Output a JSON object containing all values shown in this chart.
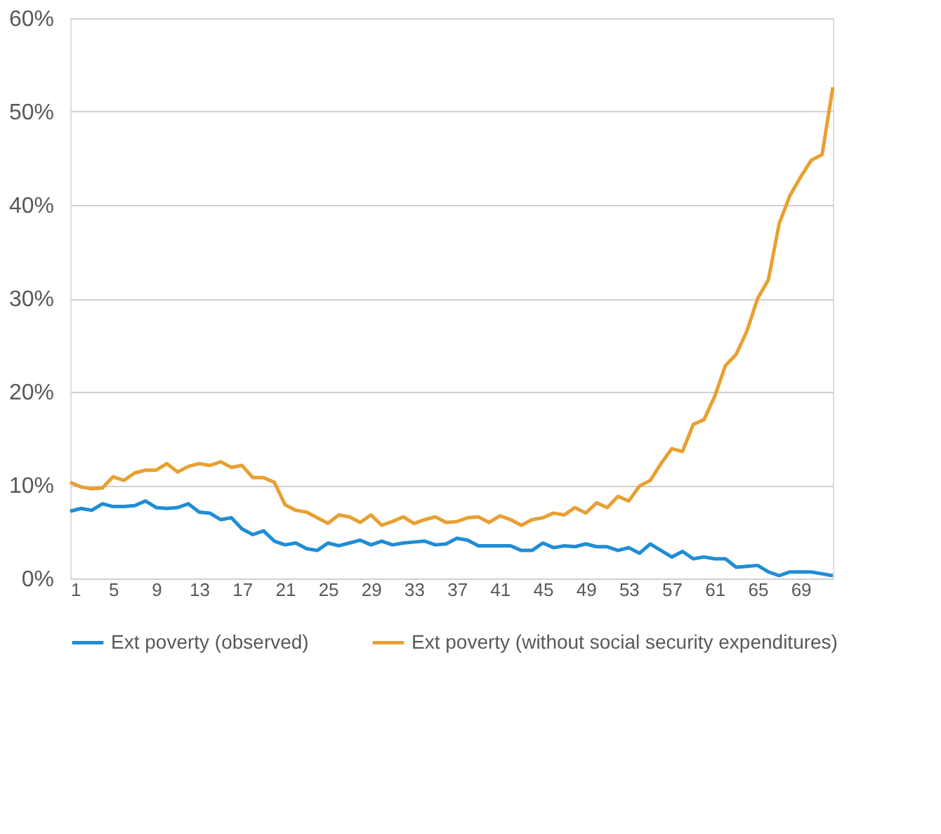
{
  "chart_data": {
    "type": "line",
    "x": [
      1,
      2,
      3,
      4,
      5,
      6,
      7,
      8,
      9,
      10,
      11,
      12,
      13,
      14,
      15,
      16,
      17,
      18,
      19,
      20,
      21,
      22,
      23,
      24,
      25,
      26,
      27,
      28,
      29,
      30,
      31,
      32,
      33,
      34,
      35,
      36,
      37,
      38,
      39,
      40,
      41,
      42,
      43,
      44,
      45,
      46,
      47,
      48,
      49,
      50,
      51,
      52,
      53,
      54,
      55,
      56,
      57,
      58,
      59,
      60,
      61,
      62,
      63,
      64,
      65,
      66,
      67,
      68,
      69,
      70,
      71,
      72
    ],
    "series": [
      {
        "name": "Ext poverty (observed)",
        "color": "#1f8dd6",
        "values": [
          7.2,
          7.5,
          7.3,
          8.0,
          7.7,
          7.7,
          7.8,
          8.3,
          7.6,
          7.5,
          7.6,
          8.0,
          7.1,
          7.0,
          6.3,
          6.5,
          5.3,
          4.7,
          5.1,
          4.0,
          3.6,
          3.8,
          3.2,
          3.0,
          3.8,
          3.5,
          3.8,
          4.1,
          3.6,
          4.0,
          3.6,
          3.8,
          3.9,
          4.0,
          3.6,
          3.7,
          4.3,
          4.1,
          3.5,
          3.5,
          3.5,
          3.5,
          3.0,
          3.0,
          3.8,
          3.3,
          3.5,
          3.4,
          3.7,
          3.4,
          3.4,
          3.0,
          3.3,
          2.7,
          3.7,
          3.0,
          2.3,
          2.9,
          2.1,
          2.3,
          2.1,
          2.1,
          1.2,
          1.3,
          1.4,
          0.7,
          0.3,
          0.7,
          0.7,
          0.7,
          0.5,
          0.3
        ]
      },
      {
        "name": "Ext poverty (without social security expenditures)",
        "color": "#e8a032",
        "values": [
          10.3,
          9.8,
          9.6,
          9.7,
          10.9,
          10.5,
          11.3,
          11.6,
          11.6,
          12.3,
          11.4,
          12.0,
          12.3,
          12.1,
          12.5,
          11.9,
          12.1,
          10.8,
          10.8,
          10.3,
          7.9,
          7.3,
          7.1,
          6.5,
          5.9,
          6.8,
          6.6,
          6.0,
          6.8,
          5.7,
          6.1,
          6.6,
          5.9,
          6.3,
          6.6,
          6.0,
          6.1,
          6.5,
          6.6,
          6.0,
          6.7,
          6.3,
          5.7,
          6.3,
          6.5,
          7.0,
          6.8,
          7.6,
          7.0,
          8.1,
          7.6,
          8.8,
          8.3,
          9.9,
          10.5,
          12.3,
          13.9,
          13.6,
          16.5,
          17.0,
          19.5,
          22.8,
          24.0,
          26.5,
          30.0,
          32.0,
          38.0,
          41.0,
          43.0,
          44.8,
          45.4,
          52.6
        ]
      }
    ],
    "xlim": [
      1,
      72
    ],
    "xticks": [
      1,
      5,
      9,
      13,
      17,
      21,
      25,
      29,
      33,
      37,
      41,
      45,
      49,
      53,
      57,
      61,
      65,
      69
    ],
    "ylim": [
      0,
      60
    ],
    "yticks": [
      {
        "value": 0,
        "label": "0%"
      },
      {
        "value": 10,
        "label": "10%"
      },
      {
        "value": 20,
        "label": "20%"
      },
      {
        "value": 30,
        "label": "30%"
      },
      {
        "value": 40,
        "label": "40%"
      },
      {
        "value": 50,
        "label": "50%"
      },
      {
        "value": 60,
        "label": "60%"
      }
    ],
    "grid": "y",
    "legend": "bottom",
    "marker": "none",
    "line_style": "solid"
  }
}
